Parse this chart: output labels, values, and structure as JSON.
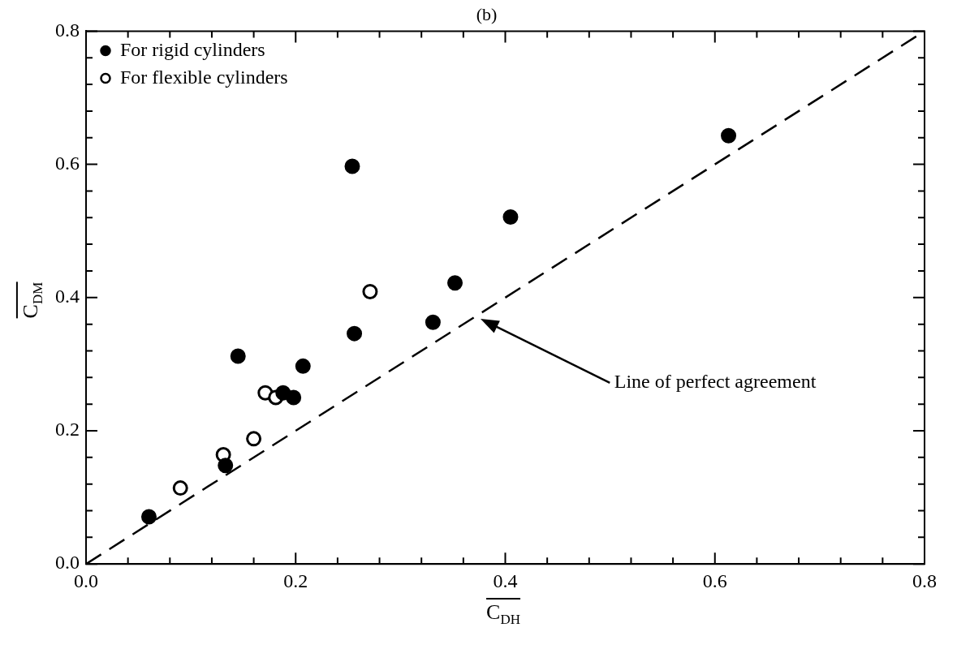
{
  "chart_data": {
    "type": "scatter",
    "title": "(b)",
    "xlabel": "C$_{DH}$",
    "ylabel": "C$_{DM}$",
    "xlim": [
      0,
      0.8
    ],
    "ylim": [
      0,
      0.8
    ],
    "xticks": [
      {
        "value": 0,
        "label": "0.0"
      },
      {
        "value": 0.04,
        "label": null
      },
      {
        "value": 0.08,
        "label": null
      },
      {
        "value": 0.12,
        "label": null
      },
      {
        "value": 0.16,
        "label": null
      },
      0.2,
      {
        "value": 0.24,
        "label": null
      },
      {
        "value": 0.28,
        "label": null
      },
      {
        "value": 0.32,
        "label": null
      },
      {
        "value": 0.36,
        "label": null
      },
      0.4,
      {
        "value": 0.44,
        "label": null
      },
      {
        "value": 0.48,
        "label": null
      },
      {
        "value": 0.52,
        "label": null
      },
      {
        "value": 0.56,
        "label": null
      },
      0.6,
      {
        "value": 0.64,
        "label": null
      },
      {
        "value": 0.68,
        "label": null
      },
      {
        "value": 0.72,
        "label": null
      },
      {
        "value": 0.76,
        "label": null
      },
      0.8
    ],
    "yticks": [
      {
        "value": 0,
        "label": "0.0"
      },
      {
        "value": 0.04,
        "label": null
      },
      {
        "value": 0.08,
        "label": null
      },
      {
        "value": 0.12,
        "label": null
      },
      {
        "value": 0.16,
        "label": null
      },
      0.2,
      {
        "value": 0.24,
        "label": null
      },
      {
        "value": 0.28,
        "label": null
      },
      {
        "value": 0.32,
        "label": null
      },
      {
        "value": 0.36,
        "label": null
      },
      0.4,
      {
        "value": 0.44,
        "label": null
      },
      {
        "value": 0.48,
        "label": null
      },
      {
        "value": 0.52,
        "label": null
      },
      {
        "value": 0.56,
        "label": null
      },
      0.6,
      {
        "value": 0.64,
        "label": null
      },
      {
        "value": 0.68,
        "label": null
      },
      {
        "value": 0.72,
        "label": null
      },
      {
        "value": 0.76,
        "label": null
      },
      0.8
    ],
    "grid": false,
    "legend": "top left",
    "marker": "circle",
    "series": [
      {
        "name": "For rigid cylinders",
        "color": "#000000",
        "x": [
          0.06,
          0.133,
          0.145,
          0.188,
          0.198,
          0.207,
          0.254,
          0.256,
          0.331,
          0.352,
          0.405,
          0.613
        ],
        "values": [
          0.071,
          0.148,
          0.312,
          0.257,
          0.25,
          0.297,
          0.597,
          0.346,
          0.363,
          0.422,
          0.521,
          0.643
        ]
      },
      {
        "name": "For flexible cylinders",
        "color": "#000000",
        "x": [
          0.09,
          0.131,
          0.16,
          0.171,
          0.181,
          0.271
        ],
        "values": [
          0.114,
          0.164,
          0.188,
          0.257,
          0.25,
          0.409
        ]
      },
      {
        "type": "line",
        "color": "#000000",
        "line_style": "dashed",
        "marker": "none",
        "x": [
          0,
          0.8
        ],
        "values": [
          0,
          0.8
        ]
      }
    ],
    "annotations": [
      "Line of perfect agreement"
    ]
  }
}
